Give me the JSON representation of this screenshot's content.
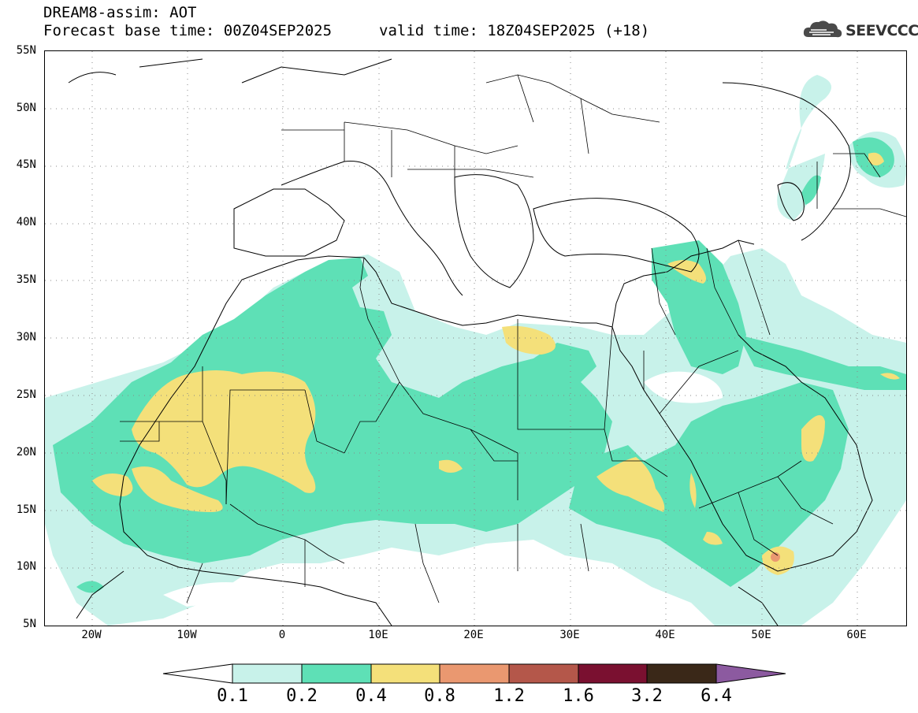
{
  "title": {
    "line1": "DREAM8-assim: AOT",
    "base_time": "Forecast base time: 00Z04SEP2025",
    "valid_time": "valid time: 18Z04SEP2025 (+18)"
  },
  "logo": {
    "text": "SEEVCCC",
    "icon": "cloud-icon"
  },
  "map": {
    "projection": "lat-lon",
    "lon_range": [
      -25,
      65
    ],
    "lat_range": [
      5,
      55
    ],
    "gridlines": "dotted",
    "lat_labels": [
      "55N",
      "50N",
      "45N",
      "40N",
      "35N",
      "30N",
      "25N",
      "20N",
      "15N",
      "10N",
      "5N"
    ],
    "lon_labels": [
      "20W",
      "10W",
      "0",
      "10E",
      "20E",
      "30E",
      "40E",
      "50E",
      "60E"
    ]
  },
  "colorbar": {
    "labels": [
      "0.1",
      "0.2",
      "0.4",
      "0.8",
      "1.2",
      "1.6",
      "3.2",
      "6.4"
    ],
    "colors": [
      "#c8f2ea",
      "#5ee0b6",
      "#f4e07a",
      "#ea9870",
      "#b4574a",
      "#7a1030",
      "#3a2818",
      "#8c5aa0"
    ]
  }
}
